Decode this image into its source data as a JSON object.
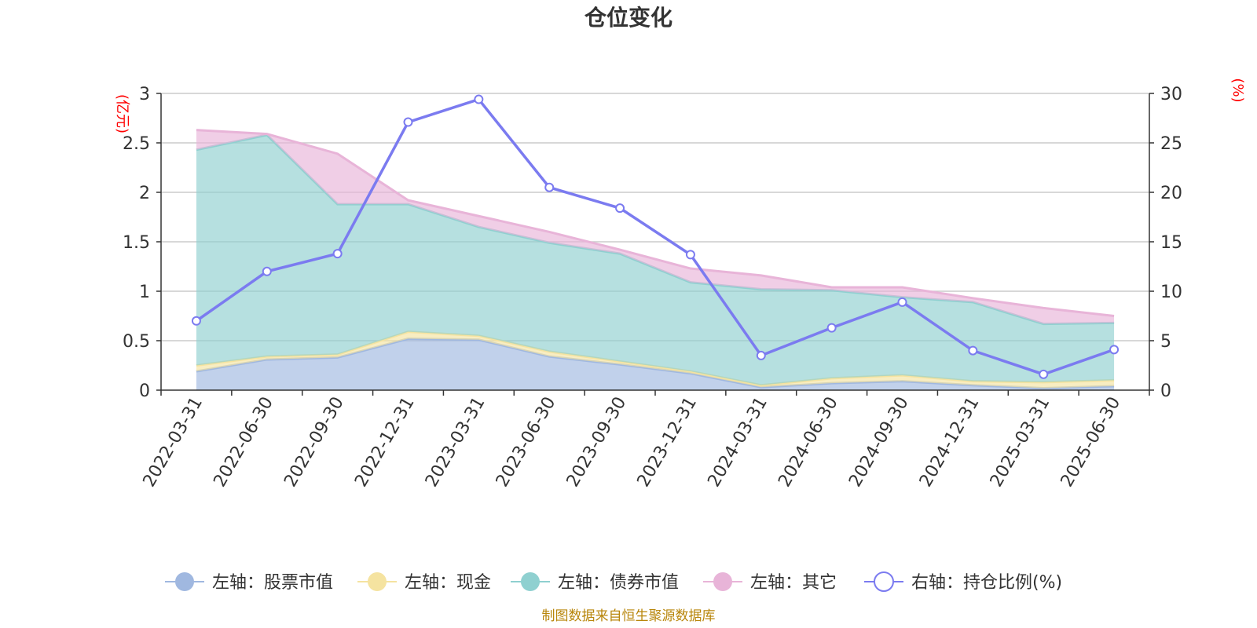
{
  "title": "仓位变化",
  "source_note": "制图数据来自恒生聚源数据库",
  "chart_data": {
    "type": "area",
    "categories": [
      "2022-03-31",
      "2022-06-30",
      "2022-09-30",
      "2022-12-31",
      "2023-03-31",
      "2023-06-30",
      "2023-09-30",
      "2023-12-31",
      "2024-03-31",
      "2024-06-30",
      "2024-09-30",
      "2024-12-31",
      "2025-03-31",
      "2025-06-30"
    ],
    "y_left": {
      "unit": "(亿元)",
      "range": [
        0,
        3
      ],
      "ticks": [
        "0",
        "0.5",
        "1",
        "1.5",
        "2",
        "2.5",
        "3"
      ]
    },
    "y_right": {
      "unit": "(%)",
      "range": [
        0,
        30
      ],
      "ticks": [
        "0",
        "5",
        "10",
        "15",
        "20",
        "25",
        "30"
      ]
    },
    "grid": true,
    "legend_position": "bottom",
    "stacked": true,
    "series": [
      {
        "name": "左轴：股票市值",
        "axis": "left",
        "kind": "area",
        "color": "#a0b8e0",
        "values": [
          0.19,
          0.31,
          0.33,
          0.52,
          0.51,
          0.34,
          0.26,
          0.17,
          0.03,
          0.07,
          0.09,
          0.05,
          0.02,
          0.04
        ]
      },
      {
        "name": "左轴：现金",
        "axis": "left",
        "kind": "area",
        "color": "#f5e3a0",
        "values": [
          0.06,
          0.03,
          0.03,
          0.07,
          0.04,
          0.05,
          0.03,
          0.02,
          0.02,
          0.05,
          0.06,
          0.04,
          0.06,
          0.06
        ]
      },
      {
        "name": "左轴：债券市值",
        "axis": "left",
        "kind": "area",
        "color": "#8fd0d0",
        "values": [
          2.18,
          2.24,
          1.52,
          1.29,
          1.1,
          1.1,
          1.09,
          0.9,
          0.97,
          0.89,
          0.79,
          0.8,
          0.59,
          0.58
        ]
      },
      {
        "name": "左轴：其它",
        "axis": "left",
        "kind": "area",
        "color": "#e8b4d8",
        "values": [
          0.2,
          0.01,
          0.51,
          0.04,
          0.11,
          0.11,
          0.04,
          0.14,
          0.14,
          0.03,
          0.1,
          0.04,
          0.16,
          0.07
        ]
      },
      {
        "name": "右轴：持仓比例(%)",
        "axis": "right",
        "kind": "line",
        "color": "#7b7bf0",
        "values": [
          7.0,
          12.0,
          13.8,
          27.1,
          29.4,
          20.5,
          18.4,
          13.7,
          3.5,
          6.3,
          8.9,
          4.0,
          1.6,
          4.1
        ]
      }
    ]
  }
}
